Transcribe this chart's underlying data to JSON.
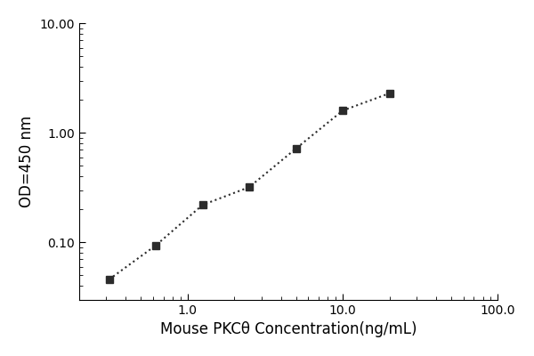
{
  "x": [
    0.313,
    0.625,
    1.25,
    2.5,
    5.0,
    10.0,
    20.0
  ],
  "y": [
    0.046,
    0.094,
    0.22,
    0.32,
    0.72,
    1.6,
    2.3
  ],
  "xlim": [
    0.2,
    100
  ],
  "ylim": [
    0.03,
    10
  ],
  "xlabel": "Mouse PKCθ Concentration(ng/mL)",
  "ylabel": "OD=450 nm",
  "marker": "s",
  "marker_size": 6,
  "marker_color": "#2b2b2b",
  "line_style": ":",
  "line_color": "#2b2b2b",
  "line_width": 1.5,
  "background_color": "#ffffff",
  "xlabel_fontsize": 12,
  "ylabel_fontsize": 12,
  "tick_fontsize": 10
}
